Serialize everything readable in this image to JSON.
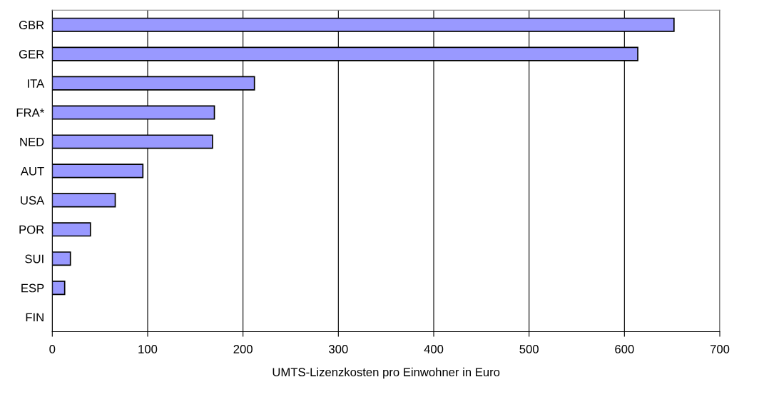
{
  "chart_data": {
    "type": "bar",
    "orientation": "horizontal",
    "xlabel": "UMTS-Lizenzkosten pro Einwohner in Euro",
    "categories": [
      "GBR",
      "GER",
      "ITA",
      "FRA*",
      "NED",
      "AUT",
      "USA",
      "POR",
      "SUI",
      "ESP",
      "FIN"
    ],
    "values": [
      652,
      614,
      212,
      170,
      168,
      95,
      66,
      40,
      19,
      13,
      0
    ],
    "color": "#9999ff",
    "xlim": [
      0,
      700
    ],
    "xticks": [
      0,
      100,
      200,
      300,
      400,
      500,
      600,
      700
    ],
    "grid": "x"
  }
}
